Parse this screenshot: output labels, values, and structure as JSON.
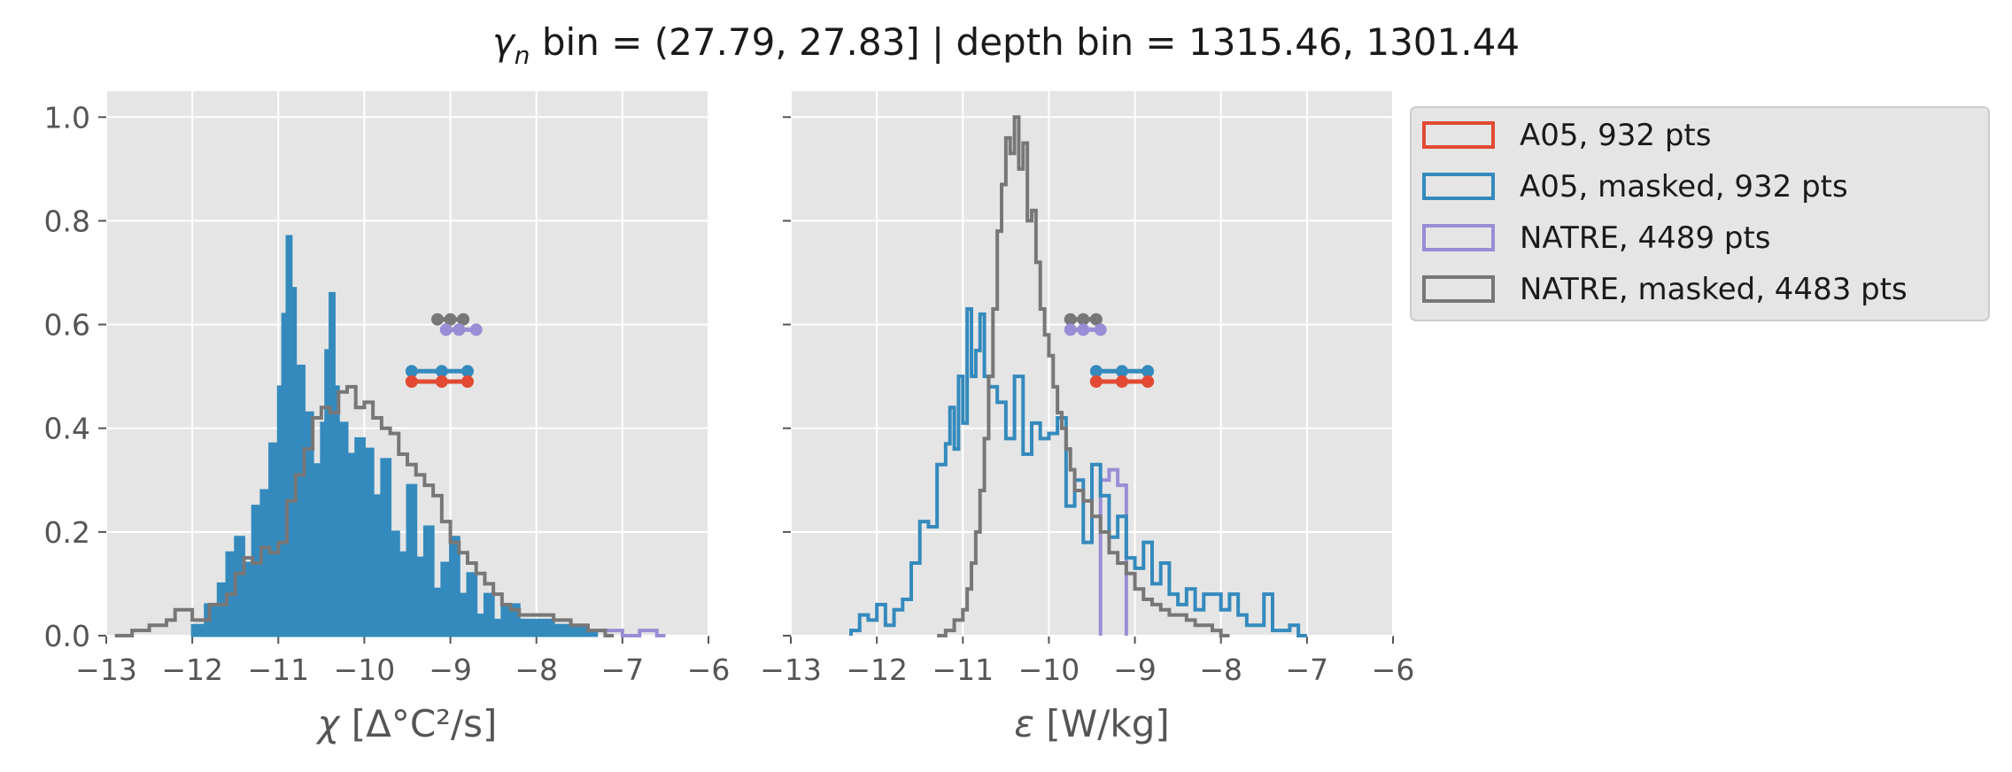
{
  "chart_data": {
    "type": "histogram",
    "title": "γn bin = (27.79, 27.83] | depth bin = 1315.46, 1301.44",
    "title_parts": {
      "symbol": "γ",
      "subscript": "n",
      "rest": " bin = (27.79, 27.83] | depth bin = 1315.46, 1301.44"
    },
    "grid": true,
    "legend_placement": "outside right, top",
    "legend": [
      {
        "label": "A05, 932 pts",
        "color": "#E24A33"
      },
      {
        "label": "A05, masked,  932 pts",
        "color": "#348ABD"
      },
      {
        "label": "NATRE, 4489 pts",
        "color": "#988ED5"
      },
      {
        "label": "NATRE, masked,  4483 pts",
        "color": "#777777"
      }
    ],
    "panels": [
      {
        "id": "chi",
        "xlabel": "χ [Δ°C²/s]",
        "xlim": [
          -13,
          -6
        ],
        "ylim": [
          0,
          1.05
        ],
        "xticks": [
          "−13",
          "−12",
          "−11",
          "−10",
          "−9",
          "−8",
          "−7",
          "−6"
        ],
        "yticks": [
          "0.0",
          "0.2",
          "0.4",
          "0.6",
          "0.8",
          "1.0"
        ],
        "series": [
          {
            "name": "NATRE, 4489 pts",
            "color": "#988ED5",
            "filled": false,
            "bins": [
              [
                -7.2,
                0.01
              ],
              [
                -7.0,
                0.0
              ],
              [
                -6.8,
                0.01
              ],
              [
                -6.6,
                0.0
              ]
            ]
          },
          {
            "name": "A05, masked,  932 pts",
            "color": "#348ABD",
            "filled": true,
            "bins": [
              [
                -12.0,
                0.02
              ],
              [
                -11.85,
                0.06
              ],
              [
                -11.7,
                0.1
              ],
              [
                -11.6,
                0.16
              ],
              [
                -11.5,
                0.19
              ],
              [
                -11.4,
                0.14
              ],
              [
                -11.3,
                0.25
              ],
              [
                -11.2,
                0.28
              ],
              [
                -11.1,
                0.37
              ],
              [
                -11.0,
                0.48
              ],
              [
                -10.95,
                0.62
              ],
              [
                -10.9,
                0.77
              ],
              [
                -10.85,
                0.67
              ],
              [
                -10.8,
                0.52
              ],
              [
                -10.7,
                0.43
              ],
              [
                -10.6,
                0.33
              ],
              [
                -10.5,
                0.41
              ],
              [
                -10.45,
                0.55
              ],
              [
                -10.4,
                0.66
              ],
              [
                -10.35,
                0.48
              ],
              [
                -10.3,
                0.41
              ],
              [
                -10.2,
                0.35
              ],
              [
                -10.1,
                0.38
              ],
              [
                -10.0,
                0.36
              ],
              [
                -9.9,
                0.27
              ],
              [
                -9.8,
                0.34
              ],
              [
                -9.7,
                0.2
              ],
              [
                -9.6,
                0.16
              ],
              [
                -9.5,
                0.29
              ],
              [
                -9.4,
                0.15
              ],
              [
                -9.3,
                0.21
              ],
              [
                -9.2,
                0.09
              ],
              [
                -9.1,
                0.14
              ],
              [
                -9.0,
                0.19
              ],
              [
                -8.9,
                0.08
              ],
              [
                -8.8,
                0.12
              ],
              [
                -8.7,
                0.04
              ],
              [
                -8.6,
                0.08
              ],
              [
                -8.5,
                0.03
              ],
              [
                -8.4,
                0.06
              ],
              [
                -8.2,
                0.03
              ],
              [
                -8.0,
                0.03
              ],
              [
                -7.8,
                0.02
              ],
              [
                -7.6,
                0.02
              ],
              [
                -7.4,
                0.01
              ]
            ]
          },
          {
            "name": "NATRE, masked,  4483 pts",
            "color": "#777777",
            "filled": false,
            "bins": [
              [
                -12.9,
                0.0
              ],
              [
                -12.7,
                0.01
              ],
              [
                -12.5,
                0.02
              ],
              [
                -12.3,
                0.03
              ],
              [
                -12.2,
                0.05
              ],
              [
                -12.0,
                0.03
              ],
              [
                -11.8,
                0.06
              ],
              [
                -11.6,
                0.08
              ],
              [
                -11.5,
                0.12
              ],
              [
                -11.4,
                0.15
              ],
              [
                -11.3,
                0.14
              ],
              [
                -11.2,
                0.17
              ],
              [
                -11.1,
                0.16
              ],
              [
                -11.0,
                0.18
              ],
              [
                -10.9,
                0.26
              ],
              [
                -10.8,
                0.31
              ],
              [
                -10.7,
                0.36
              ],
              [
                -10.6,
                0.42
              ],
              [
                -10.5,
                0.44
              ],
              [
                -10.4,
                0.43
              ],
              [
                -10.3,
                0.47
              ],
              [
                -10.2,
                0.48
              ],
              [
                -10.1,
                0.44
              ],
              [
                -10.0,
                0.45
              ],
              [
                -9.9,
                0.42
              ],
              [
                -9.8,
                0.4
              ],
              [
                -9.7,
                0.39
              ],
              [
                -9.6,
                0.35
              ],
              [
                -9.5,
                0.33
              ],
              [
                -9.4,
                0.31
              ],
              [
                -9.3,
                0.29
              ],
              [
                -9.2,
                0.27
              ],
              [
                -9.1,
                0.22
              ],
              [
                -9.0,
                0.18
              ],
              [
                -8.9,
                0.16
              ],
              [
                -8.8,
                0.14
              ],
              [
                -8.7,
                0.12
              ],
              [
                -8.6,
                0.1
              ],
              [
                -8.5,
                0.08
              ],
              [
                -8.4,
                0.06
              ],
              [
                -8.3,
                0.05
              ],
              [
                -8.2,
                0.04
              ],
              [
                -8.0,
                0.04
              ],
              [
                -7.8,
                0.03
              ],
              [
                -7.6,
                0.02
              ],
              [
                -7.4,
                0.01
              ],
              [
                -7.2,
                0.0
              ]
            ]
          }
        ],
        "markers": [
          {
            "color": "#777777",
            "y": 0.61,
            "x": [
              -9.15,
              -9.0,
              -8.85
            ]
          },
          {
            "color": "#988ED5",
            "y": 0.59,
            "x": [
              -9.05,
              -8.9,
              -8.7
            ]
          },
          {
            "color": "#348ABD",
            "y": 0.51,
            "x": [
              -9.45,
              -9.1,
              -8.8
            ]
          },
          {
            "color": "#E24A33",
            "y": 0.49,
            "x": [
              -9.45,
              -9.1,
              -8.8
            ]
          }
        ]
      },
      {
        "id": "eps",
        "xlabel": "ε [W/kg]",
        "xlim": [
          -13,
          -6
        ],
        "ylim": [
          0,
          1.05
        ],
        "xticks": [
          "−13",
          "−12",
          "−11",
          "−10",
          "−9",
          "−8",
          "−7",
          "−6"
        ],
        "yticks": [
          "",
          "",
          "",
          "",
          "",
          ""
        ],
        "series": [
          {
            "name": "NATRE, 4489 pts",
            "color": "#988ED5",
            "filled": false,
            "bins": [
              [
                -9.4,
                0.3
              ],
              [
                -9.3,
                0.32
              ],
              [
                -9.2,
                0.29
              ]
            ]
          },
          {
            "name": "A05, masked,  932 pts",
            "color": "#348ABD",
            "filled": false,
            "bins": [
              [
                -12.3,
                0.01
              ],
              [
                -12.2,
                0.04
              ],
              [
                -12.1,
                0.03
              ],
              [
                -12.0,
                0.06
              ],
              [
                -11.9,
                0.02
              ],
              [
                -11.8,
                0.05
              ],
              [
                -11.7,
                0.07
              ],
              [
                -11.6,
                0.14
              ],
              [
                -11.5,
                0.22
              ],
              [
                -11.4,
                0.21
              ],
              [
                -11.3,
                0.33
              ],
              [
                -11.2,
                0.37
              ],
              [
                -11.15,
                0.44
              ],
              [
                -11.1,
                0.36
              ],
              [
                -11.05,
                0.5
              ],
              [
                -11.0,
                0.41
              ],
              [
                -10.95,
                0.63
              ],
              [
                -10.9,
                0.5
              ],
              [
                -10.85,
                0.55
              ],
              [
                -10.8,
                0.62
              ],
              [
                -10.75,
                0.5
              ],
              [
                -10.7,
                0.48
              ],
              [
                -10.6,
                0.45
              ],
              [
                -10.5,
                0.38
              ],
              [
                -10.4,
                0.5
              ],
              [
                -10.3,
                0.35
              ],
              [
                -10.2,
                0.41
              ],
              [
                -10.1,
                0.38
              ],
              [
                -10.0,
                0.39
              ],
              [
                -9.9,
                0.42
              ],
              [
                -9.8,
                0.25
              ],
              [
                -9.7,
                0.3
              ],
              [
                -9.6,
                0.18
              ],
              [
                -9.5,
                0.33
              ],
              [
                -9.4,
                0.27
              ],
              [
                -9.3,
                0.19
              ],
              [
                -9.2,
                0.23
              ],
              [
                -9.1,
                0.15
              ],
              [
                -9.0,
                0.13
              ],
              [
                -8.9,
                0.18
              ],
              [
                -8.8,
                0.1
              ],
              [
                -8.7,
                0.14
              ],
              [
                -8.6,
                0.08
              ],
              [
                -8.5,
                0.06
              ],
              [
                -8.4,
                0.09
              ],
              [
                -8.3,
                0.05
              ],
              [
                -8.2,
                0.08
              ],
              [
                -8.0,
                0.05
              ],
              [
                -7.9,
                0.08
              ],
              [
                -7.8,
                0.04
              ],
              [
                -7.7,
                0.02
              ],
              [
                -7.5,
                0.08
              ],
              [
                -7.4,
                0.01
              ],
              [
                -7.2,
                0.02
              ],
              [
                -7.1,
                0.0
              ]
            ]
          },
          {
            "name": "NATRE, masked,  4483 pts",
            "color": "#777777",
            "filled": false,
            "bins": [
              [
                -11.3,
                0.0
              ],
              [
                -11.2,
                0.01
              ],
              [
                -11.1,
                0.03
              ],
              [
                -11.0,
                0.05
              ],
              [
                -10.95,
                0.09
              ],
              [
                -10.9,
                0.14
              ],
              [
                -10.85,
                0.2
              ],
              [
                -10.8,
                0.28
              ],
              [
                -10.75,
                0.38
              ],
              [
                -10.7,
                0.5
              ],
              [
                -10.65,
                0.63
              ],
              [
                -10.6,
                0.78
              ],
              [
                -10.55,
                0.87
              ],
              [
                -10.5,
                0.96
              ],
              [
                -10.45,
                0.93
              ],
              [
                -10.4,
                1.0
              ],
              [
                -10.35,
                0.9
              ],
              [
                -10.3,
                0.95
              ],
              [
                -10.25,
                0.8
              ],
              [
                -10.2,
                0.82
              ],
              [
                -10.15,
                0.72
              ],
              [
                -10.1,
                0.63
              ],
              [
                -10.05,
                0.58
              ],
              [
                -10.0,
                0.54
              ],
              [
                -9.95,
                0.48
              ],
              [
                -9.9,
                0.43
              ],
              [
                -9.85,
                0.4
              ],
              [
                -9.8,
                0.36
              ],
              [
                -9.75,
                0.32
              ],
              [
                -9.7,
                0.28
              ],
              [
                -9.6,
                0.26
              ],
              [
                -9.5,
                0.23
              ],
              [
                -9.4,
                0.2
              ],
              [
                -9.3,
                0.16
              ],
              [
                -9.2,
                0.14
              ],
              [
                -9.1,
                0.12
              ],
              [
                -9.0,
                0.09
              ],
              [
                -8.9,
                0.07
              ],
              [
                -8.8,
                0.06
              ],
              [
                -8.7,
                0.05
              ],
              [
                -8.6,
                0.04
              ],
              [
                -8.5,
                0.04
              ],
              [
                -8.4,
                0.03
              ],
              [
                -8.3,
                0.02
              ],
              [
                -8.1,
                0.01
              ],
              [
                -8.0,
                0.0
              ]
            ]
          }
        ],
        "markers": [
          {
            "color": "#777777",
            "y": 0.61,
            "x": [
              -9.75,
              -9.6,
              -9.45
            ]
          },
          {
            "color": "#988ED5",
            "y": 0.59,
            "x": [
              -9.75,
              -9.6,
              -9.4
            ]
          },
          {
            "color": "#348ABD",
            "y": 0.51,
            "x": [
              -9.45,
              -9.15,
              -8.85
            ]
          },
          {
            "color": "#E24A33",
            "y": 0.49,
            "x": [
              -9.45,
              -9.15,
              -8.85
            ]
          }
        ]
      }
    ]
  }
}
